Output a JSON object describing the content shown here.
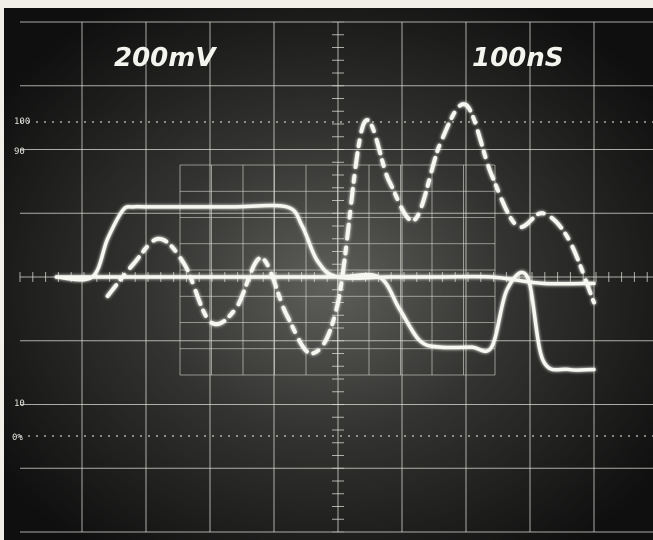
{
  "screen": {
    "volts_per_div": "200mV",
    "time_per_div": "100nS",
    "percent_labels": [
      "100",
      "90",
      "10",
      "0%"
    ]
  },
  "colors": {
    "screen_dark": "#141414",
    "screen_glow": "#5a5a58",
    "trace": "#f7f7f2",
    "graticule": "#dcdcd6",
    "bezel": "#f2efe9"
  },
  "chart_data": {
    "type": "line",
    "title": "",
    "xlabel": "",
    "ylabel": "",
    "x_unit_per_div": "100nS",
    "y_unit_per_div": "200mV",
    "xlim": [
      0,
      10
    ],
    "ylim": [
      -4,
      4
    ],
    "grid": true,
    "series": [
      {
        "x": [
          -0.5,
          0.2,
          0.5,
          0.8,
          1.0,
          1.3,
          2.0,
          3.0,
          4.0,
          4.3,
          4.6,
          5.0,
          6.0,
          7.0,
          8.0,
          9.0,
          10.0
        ],
        "y": [
          0.0,
          0.0,
          0.6,
          1.05,
          1.1,
          1.1,
          1.1,
          1.1,
          1.1,
          0.8,
          0.25,
          0.0,
          0.0,
          0.0,
          0.0,
          -0.1,
          -0.1
        ]
      },
      {
        "x": [
          -0.5,
          1.0,
          2.0,
          3.0,
          4.0,
          5.0,
          5.8,
          6.2,
          6.6,
          7.0,
          7.6,
          8.0,
          8.3,
          8.7,
          9.0,
          9.5,
          10.0
        ],
        "y": [
          0.0,
          0.0,
          0.0,
          0.0,
          0.0,
          0.0,
          0.0,
          -0.5,
          -1.0,
          -1.1,
          -1.1,
          -1.1,
          -0.2,
          0.0,
          -1.3,
          -1.45,
          -1.45
        ]
      },
      {
        "x": [
          0.5,
          1.0,
          1.5,
          2.0,
          2.5,
          3.0,
          3.5,
          4.0,
          4.5,
          5.0,
          5.5,
          6.0,
          6.5,
          7.0,
          7.5,
          8.0,
          8.5,
          9.0,
          9.5,
          10.0
        ],
        "y": [
          -0.3,
          0.2,
          0.6,
          0.2,
          -0.7,
          -0.5,
          0.3,
          -0.6,
          -1.2,
          -0.4,
          2.4,
          1.5,
          0.9,
          2.1,
          2.7,
          1.6,
          0.8,
          1.0,
          0.6,
          -0.4
        ]
      }
    ]
  }
}
